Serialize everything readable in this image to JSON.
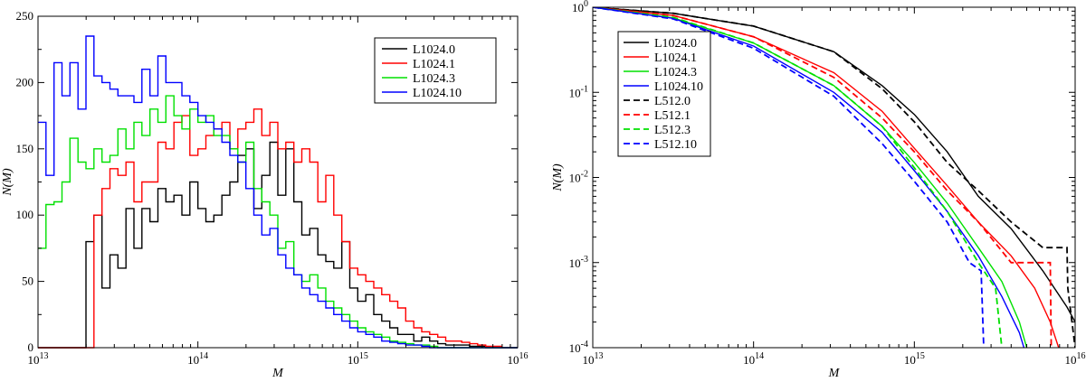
{
  "chart_data": [
    {
      "type": "histogram-step",
      "title": "",
      "xlabel": "M",
      "ylabel": "N(M)",
      "xscale": "log",
      "xlim": [
        10000000000000.0,
        1e+16
      ],
      "ylim": [
        0,
        250
      ],
      "x_ticks": [
        {
          "value": 10000000000000.0,
          "base": "10",
          "exp": "13"
        },
        {
          "value": 100000000000000.0,
          "base": "10",
          "exp": "14"
        },
        {
          "value": 1000000000000000.0,
          "base": "10",
          "exp": "15"
        },
        {
          "value": 1e+16,
          "base": "10",
          "exp": "16"
        }
      ],
      "y_ticks": [
        "0",
        "50",
        "100",
        "150",
        "200",
        "250"
      ],
      "legend_position": "top-right",
      "bin_log_start": 13.0,
      "bin_log_width": 0.05,
      "series": [
        {
          "name": "L1024.0",
          "color": "#000000",
          "dashed": false,
          "values": [
            0,
            0,
            0,
            0,
            0,
            0,
            80,
            100,
            45,
            70,
            60,
            105,
            75,
            105,
            95,
            120,
            110,
            115,
            100,
            125,
            105,
            95,
            100,
            115,
            125,
            145,
            150,
            105,
            130,
            155,
            115,
            150,
            110,
            85,
            90,
            70,
            65,
            60,
            80,
            45,
            35,
            40,
            25,
            20,
            15,
            10,
            10,
            5,
            8,
            5,
            3,
            2,
            2,
            2,
            1,
            1,
            0,
            0,
            0,
            0
          ]
        },
        {
          "name": "L1024.1",
          "color": "#ff0000",
          "dashed": false,
          "values": [
            0,
            0,
            0,
            0,
            0,
            0,
            0,
            100,
            120,
            135,
            130,
            140,
            110,
            125,
            125,
            155,
            150,
            170,
            175,
            145,
            150,
            160,
            165,
            170,
            150,
            165,
            170,
            180,
            160,
            170,
            150,
            155,
            140,
            150,
            140,
            110,
            130,
            100,
            80,
            60,
            55,
            50,
            45,
            40,
            35,
            30,
            20,
            15,
            12,
            10,
            8,
            5,
            5,
            4,
            3,
            2,
            1,
            1,
            0,
            0
          ]
        },
        {
          "name": "L1024.3",
          "color": "#00e000",
          "dashed": false,
          "values": [
            75,
            108,
            110,
            125,
            158,
            140,
            135,
            150,
            140,
            145,
            165,
            150,
            170,
            160,
            180,
            170,
            190,
            175,
            165,
            180,
            170,
            175,
            160,
            160,
            150,
            140,
            155,
            120,
            110,
            100,
            75,
            80,
            55,
            50,
            55,
            45,
            35,
            30,
            25,
            20,
            15,
            12,
            10,
            8,
            5,
            4,
            3,
            2,
            2,
            1,
            0,
            0,
            0,
            0,
            0,
            0,
            0,
            0,
            0,
            0
          ]
        },
        {
          "name": "L1024.10",
          "color": "#0000ff",
          "dashed": false,
          "values": [
            170,
            130,
            215,
            190,
            215,
            180,
            235,
            205,
            200,
            195,
            190,
            190,
            185,
            210,
            190,
            220,
            200,
            200,
            190,
            185,
            175,
            170,
            165,
            155,
            145,
            140,
            120,
            100,
            85,
            90,
            70,
            60,
            55,
            45,
            40,
            35,
            30,
            25,
            20,
            15,
            12,
            10,
            8,
            5,
            4,
            3,
            2,
            2,
            1,
            0,
            0,
            0,
            0,
            0,
            0,
            0,
            0,
            0,
            0,
            0
          ]
        }
      ]
    },
    {
      "type": "line",
      "title": "",
      "xlabel": "M",
      "ylabel": "N(M)",
      "xscale": "log",
      "yscale": "log",
      "xlim": [
        10000000000000.0,
        1e+16
      ],
      "ylim": [
        0.0001,
        1
      ],
      "x_ticks": [
        {
          "value": 10000000000000.0,
          "base": "10",
          "exp": "13"
        },
        {
          "value": 100000000000000.0,
          "base": "10",
          "exp": "14"
        },
        {
          "value": 1000000000000000.0,
          "base": "10",
          "exp": "15"
        },
        {
          "value": 1e+16,
          "base": "10",
          "exp": "16"
        }
      ],
      "y_ticks": [
        {
          "value": 0.0001,
          "base": "10",
          "exp": "-4"
        },
        {
          "value": 0.001,
          "base": "10",
          "exp": "-3"
        },
        {
          "value": 0.01,
          "base": "10",
          "exp": "-2"
        },
        {
          "value": 0.1,
          "base": "10",
          "exp": "-1"
        },
        {
          "value": 1,
          "base": "10",
          "exp": "0"
        }
      ],
      "legend_position": "top-left",
      "series": [
        {
          "name": "L1024.0",
          "color": "#000000",
          "dashed": false,
          "points": [
            [
              10000000000000.0,
              1
            ],
            [
              31600000000000.0,
              0.85
            ],
            [
              100000000000000.0,
              0.6
            ],
            [
              316000000000000.0,
              0.3
            ],
            [
              630000000000000.0,
              0.12
            ],
            [
              1000000000000000.0,
              0.055
            ],
            [
              1600000000000000.0,
              0.02
            ],
            [
              2500000000000000.0,
              0.006
            ],
            [
              4000000000000000.0,
              0.0025
            ],
            [
              6300000000000000.0,
              0.0008
            ],
            [
              8900000000000000.0,
              0.0003
            ],
            [
              1e+16,
              0.0002
            ],
            [
              1.2e+16,
              0.0001
            ]
          ]
        },
        {
          "name": "L1024.1",
          "color": "#ff0000",
          "dashed": false,
          "points": [
            [
              10000000000000.0,
              1
            ],
            [
              31600000000000.0,
              0.8
            ],
            [
              100000000000000.0,
              0.45
            ],
            [
              316000000000000.0,
              0.17
            ],
            [
              630000000000000.0,
              0.06
            ],
            [
              1000000000000000.0,
              0.022
            ],
            [
              1600000000000000.0,
              0.008
            ],
            [
              2500000000000000.0,
              0.003
            ],
            [
              4000000000000000.0,
              0.0012
            ],
            [
              5600000000000000.0,
              0.0005
            ],
            [
              7000000000000000.0,
              0.0002
            ],
            [
              7900000000000000.0,
              0.0001
            ]
          ]
        },
        {
          "name": "L1024.3",
          "color": "#00e000",
          "dashed": false,
          "points": [
            [
              10000000000000.0,
              1
            ],
            [
              31600000000000.0,
              0.75
            ],
            [
              100000000000000.0,
              0.38
            ],
            [
              316000000000000.0,
              0.12
            ],
            [
              630000000000000.0,
              0.04
            ],
            [
              1000000000000000.0,
              0.015
            ],
            [
              1600000000000000.0,
              0.005
            ],
            [
              2500000000000000.0,
              0.0015
            ],
            [
              3500000000000000.0,
              0.0006
            ],
            [
              4500000000000000.0,
              0.0002
            ],
            [
              5000000000000000.0,
              0.0001
            ]
          ]
        },
        {
          "name": "L1024.10",
          "color": "#0000ff",
          "dashed": false,
          "points": [
            [
              10000000000000.0,
              1
            ],
            [
              31600000000000.0,
              0.74
            ],
            [
              100000000000000.0,
              0.35
            ],
            [
              316000000000000.0,
              0.1
            ],
            [
              630000000000000.0,
              0.034
            ],
            [
              1000000000000000.0,
              0.012
            ],
            [
              1600000000000000.0,
              0.004
            ],
            [
              2500000000000000.0,
              0.0012
            ],
            [
              3500000000000000.0,
              0.0004
            ],
            [
              4500000000000000.0,
              0.00015
            ],
            [
              4800000000000000.0,
              0.0001
            ]
          ]
        },
        {
          "name": "L512.0",
          "color": "#000000",
          "dashed": true,
          "points": [
            [
              10000000000000.0,
              1
            ],
            [
              31600000000000.0,
              0.85
            ],
            [
              100000000000000.0,
              0.6
            ],
            [
              316000000000000.0,
              0.3
            ],
            [
              630000000000000.0,
              0.11
            ],
            [
              1000000000000000.0,
              0.045
            ],
            [
              1600000000000000.0,
              0.015
            ],
            [
              2500000000000000.0,
              0.007
            ],
            [
              4000000000000000.0,
              0.003
            ],
            [
              6300000000000000.0,
              0.0015
            ],
            [
              8900000000000000.0,
              0.0015
            ],
            [
              9000000000000000.0,
              0.0005
            ],
            [
              1e+16,
              0.0001
            ]
          ]
        },
        {
          "name": "L512.1",
          "color": "#ff0000",
          "dashed": true,
          "points": [
            [
              10000000000000.0,
              1
            ],
            [
              31600000000000.0,
              0.8
            ],
            [
              100000000000000.0,
              0.45
            ],
            [
              316000000000000.0,
              0.15
            ],
            [
              630000000000000.0,
              0.05
            ],
            [
              1000000000000000.0,
              0.02
            ],
            [
              1600000000000000.0,
              0.007
            ],
            [
              2500000000000000.0,
              0.003
            ],
            [
              4000000000000000.0,
              0.001
            ],
            [
              6300000000000000.0,
              0.001
            ],
            [
              7000000000000000.0,
              0.001
            ],
            [
              7100000000000000.0,
              0.0001
            ]
          ]
        },
        {
          "name": "L512.3",
          "color": "#00e000",
          "dashed": true,
          "points": [
            [
              10000000000000.0,
              1
            ],
            [
              31600000000000.0,
              0.76
            ],
            [
              100000000000000.0,
              0.38
            ],
            [
              316000000000000.0,
              0.12
            ],
            [
              630000000000000.0,
              0.04
            ],
            [
              1000000000000000.0,
              0.013
            ],
            [
              1600000000000000.0,
              0.004
            ],
            [
              2500000000000000.0,
              0.001
            ],
            [
              3200000000000000.0,
              0.0005
            ],
            [
              3500000000000000.0,
              0.0001
            ]
          ]
        },
        {
          "name": "L512.10",
          "color": "#0000ff",
          "dashed": true,
          "points": [
            [
              10000000000000.0,
              1
            ],
            [
              31600000000000.0,
              0.73
            ],
            [
              100000000000000.0,
              0.33
            ],
            [
              316000000000000.0,
              0.09
            ],
            [
              630000000000000.0,
              0.025
            ],
            [
              1000000000000000.0,
              0.009
            ],
            [
              1600000000000000.0,
              0.003
            ],
            [
              2200000000000000.0,
              0.001
            ],
            [
              2600000000000000.0,
              0.0008
            ],
            [
              2700000000000000.0,
              0.0001
            ]
          ]
        }
      ]
    }
  ]
}
